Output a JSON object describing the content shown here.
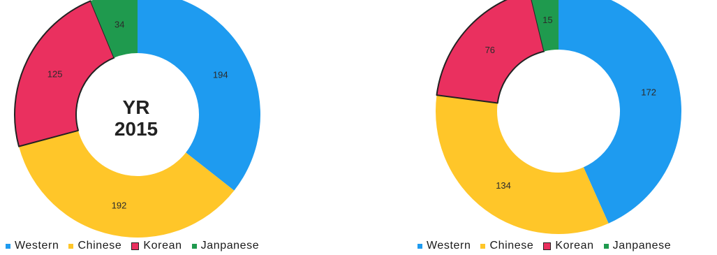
{
  "chart_data": [
    {
      "type": "donut",
      "center_label_lines": [
        "YR",
        "2015"
      ],
      "categories": [
        "Western",
        "Chinese",
        "Korean",
        "Janpanese"
      ],
      "values": [
        194,
        192,
        125,
        34
      ],
      "colors": [
        "#1e9bf0",
        "#ffc629",
        "#ea305f",
        "#1f9a4e"
      ],
      "highlighted": [
        "Korean"
      ],
      "legend": [
        "Western",
        "Chinese",
        "Korean",
        "Janpanese"
      ],
      "legend_position": "bottom"
    },
    {
      "type": "donut",
      "center_label_lines": [],
      "categories": [
        "Western",
        "Chinese",
        "Korean",
        "Janpanese"
      ],
      "values": [
        172,
        134,
        76,
        15
      ],
      "colors": [
        "#1e9bf0",
        "#ffc629",
        "#ea305f",
        "#1f9a4e"
      ],
      "highlighted": [
        "Korean"
      ],
      "legend": [
        "Western",
        "Chinese",
        "Korean",
        "Janpanese"
      ],
      "legend_position": "bottom"
    }
  ]
}
